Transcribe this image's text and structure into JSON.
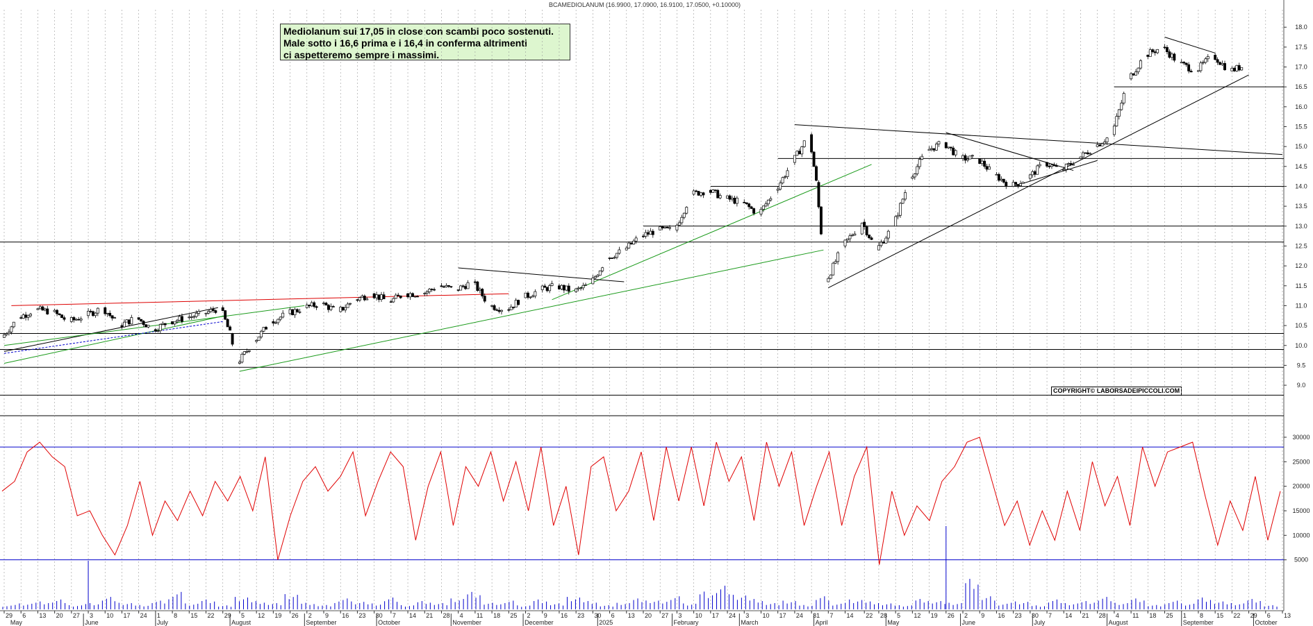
{
  "header": {
    "title": "BCAMEDIOLANUM (16.9900, 17.0900, 16.9100, 17.0500, +0.10000)"
  },
  "note": {
    "line1": "Mediolanum  sui 17,05 in close con scambi poco sostenuti.",
    "line2": "Male sotto i 16,6 prima e i 16,4 in conferma altrimenti",
    "line3": "ci aspetteremo sempre i massimi."
  },
  "copyright": "COPYRIGHT© LABORSADEIPICCOLI.COM",
  "colors": {
    "candle": "#000000",
    "oscillator": "#e00000",
    "volume": "#0000cc",
    "trend_green": "#1a9a1a",
    "trend_red": "#dd0000",
    "level_line": "#000000",
    "band": "#0000cc",
    "grid": "#9a9a9a",
    "note_bg": "#ddf6cf"
  },
  "chart_data": [
    {
      "type": "candlestick",
      "title": "BCAMEDIOLANUM",
      "ylim": [
        8.6,
        18.3
      ],
      "y_ticks": [
        "18.0",
        "17.5",
        "17.0",
        "16.5",
        "16.0",
        "15.5",
        "15.0",
        "14.5",
        "14.0",
        "13.5",
        "13.0",
        "12.5",
        "12.0",
        "11.5",
        "11.0",
        "10.5",
        "10.0",
        "9.5",
        "9.0"
      ],
      "x_months": [
        {
          "label": "May",
          "date": "2024-05-01"
        },
        {
          "label": "June",
          "date": "2024-06-01"
        },
        {
          "label": "July",
          "date": "2024-07-01"
        },
        {
          "label": "August",
          "date": "2024-08-01"
        },
        {
          "label": "September",
          "date": "2024-09-01"
        },
        {
          "label": "October",
          "date": "2024-10-01"
        },
        {
          "label": "November",
          "date": "2024-11-01"
        },
        {
          "label": "December",
          "date": "2024-12-01"
        },
        {
          "label": "2025",
          "date": "2025-01-01"
        },
        {
          "label": "February",
          "date": "2025-02-01"
        },
        {
          "label": "March",
          "date": "2025-03-01"
        },
        {
          "label": "April",
          "date": "2025-04-01"
        },
        {
          "label": "May",
          "date": "2025-05-01"
        },
        {
          "label": "June",
          "date": "2025-06-01"
        },
        {
          "label": "July",
          "date": "2025-07-01"
        },
        {
          "label": "August",
          "date": "2025-08-01"
        },
        {
          "label": "September",
          "date": "2025-09-01"
        },
        {
          "label": "October",
          "date": "2025-10-01"
        }
      ],
      "x_day_ticks": [
        {
          "label": "29",
          "date": "2024-04-29"
        },
        {
          "label": "6",
          "date": "2024-05-06"
        },
        {
          "label": "13",
          "date": "2024-05-13"
        },
        {
          "label": "20",
          "date": "2024-05-20"
        },
        {
          "label": "27",
          "date": "2024-05-27"
        },
        {
          "label": "3",
          "date": "2024-06-03"
        },
        {
          "label": "10",
          "date": "2024-06-10"
        },
        {
          "label": "17",
          "date": "2024-06-17"
        },
        {
          "label": "24",
          "date": "2024-06-24"
        },
        {
          "label": "1",
          "date": "2024-07-01"
        },
        {
          "label": "8",
          "date": "2024-07-08"
        },
        {
          "label": "15",
          "date": "2024-07-15"
        },
        {
          "label": "22",
          "date": "2024-07-22"
        },
        {
          "label": "29",
          "date": "2024-07-29"
        },
        {
          "label": "5",
          "date": "2024-08-05"
        },
        {
          "label": "12",
          "date": "2024-08-12"
        },
        {
          "label": "19",
          "date": "2024-08-19"
        },
        {
          "label": "26",
          "date": "2024-08-26"
        },
        {
          "label": "2",
          "date": "2024-09-02"
        },
        {
          "label": "9",
          "date": "2024-09-09"
        },
        {
          "label": "16",
          "date": "2024-09-16"
        },
        {
          "label": "23",
          "date": "2024-09-23"
        },
        {
          "label": "30",
          "date": "2024-09-30"
        },
        {
          "label": "7",
          "date": "2024-10-07"
        },
        {
          "label": "14",
          "date": "2024-10-14"
        },
        {
          "label": "21",
          "date": "2024-10-21"
        },
        {
          "label": "28",
          "date": "2024-10-28"
        },
        {
          "label": "4",
          "date": "2024-11-04"
        },
        {
          "label": "11",
          "date": "2024-11-11"
        },
        {
          "label": "18",
          "date": "2024-11-18"
        },
        {
          "label": "25",
          "date": "2024-11-25"
        },
        {
          "label": "2",
          "date": "2024-12-02"
        },
        {
          "label": "9",
          "date": "2024-12-09"
        },
        {
          "label": "16",
          "date": "2024-12-16"
        },
        {
          "label": "23",
          "date": "2024-12-23"
        },
        {
          "label": "30",
          "date": "2024-12-30"
        },
        {
          "label": "6",
          "date": "2025-01-06"
        },
        {
          "label": "13",
          "date": "2025-01-13"
        },
        {
          "label": "20",
          "date": "2025-01-20"
        },
        {
          "label": "27",
          "date": "2025-01-27"
        },
        {
          "label": "3",
          "date": "2025-02-03"
        },
        {
          "label": "10",
          "date": "2025-02-10"
        },
        {
          "label": "17",
          "date": "2025-02-17"
        },
        {
          "label": "24",
          "date": "2025-02-24"
        },
        {
          "label": "3",
          "date": "2025-03-03"
        },
        {
          "label": "10",
          "date": "2025-03-10"
        },
        {
          "label": "17",
          "date": "2025-03-17"
        },
        {
          "label": "24",
          "date": "2025-03-24"
        },
        {
          "label": "31",
          "date": "2025-03-31"
        },
        {
          "label": "7",
          "date": "2025-04-07"
        },
        {
          "label": "14",
          "date": "2025-04-14"
        },
        {
          "label": "22",
          "date": "2025-04-22"
        },
        {
          "label": "28",
          "date": "2025-04-28"
        },
        {
          "label": "5",
          "date": "2025-05-05"
        },
        {
          "label": "12",
          "date": "2025-05-12"
        },
        {
          "label": "19",
          "date": "2025-05-19"
        },
        {
          "label": "26",
          "date": "2025-05-26"
        },
        {
          "label": "2",
          "date": "2025-06-02"
        },
        {
          "label": "9",
          "date": "2025-06-09"
        },
        {
          "label": "16",
          "date": "2025-06-16"
        },
        {
          "label": "23",
          "date": "2025-06-23"
        },
        {
          "label": "30",
          "date": "2025-06-30"
        },
        {
          "label": "7",
          "date": "2025-07-07"
        },
        {
          "label": "14",
          "date": "2025-07-14"
        },
        {
          "label": "21",
          "date": "2025-07-21"
        },
        {
          "label": "28",
          "date": "2025-07-28"
        },
        {
          "label": "4",
          "date": "2025-08-04"
        },
        {
          "label": "11",
          "date": "2025-08-11"
        },
        {
          "label": "18",
          "date": "2025-08-18"
        },
        {
          "label": "25",
          "date": "2025-08-25"
        },
        {
          "label": "1",
          "date": "2025-09-01"
        },
        {
          "label": "8",
          "date": "2025-09-08"
        },
        {
          "label": "15",
          "date": "2025-09-15"
        },
        {
          "label": "22",
          "date": "2025-09-22"
        },
        {
          "label": "29",
          "date": "2025-09-29"
        },
        {
          "label": "6",
          "date": "2025-10-06"
        },
        {
          "label": "13",
          "date": "2025-10-13"
        }
      ],
      "close_series": [
        [
          "2024-04-29",
          10.2
        ],
        [
          "2024-05-06",
          10.7
        ],
        [
          "2024-05-13",
          10.9
        ],
        [
          "2024-05-20",
          10.85
        ],
        [
          "2024-05-27",
          10.6
        ],
        [
          "2024-06-03",
          10.75
        ],
        [
          "2024-06-10",
          10.95
        ],
        [
          "2024-06-17",
          10.5
        ],
        [
          "2024-06-24",
          10.7
        ],
        [
          "2024-07-01",
          10.4
        ],
        [
          "2024-07-08",
          10.6
        ],
        [
          "2024-07-15",
          10.7
        ],
        [
          "2024-07-22",
          10.8
        ],
        [
          "2024-07-29",
          10.95
        ],
        [
          "2024-08-02",
          10.3
        ],
        [
          "2024-08-05",
          9.55
        ],
        [
          "2024-08-12",
          10.1
        ],
        [
          "2024-08-19",
          10.6
        ],
        [
          "2024-08-26",
          10.8
        ],
        [
          "2024-09-02",
          10.95
        ],
        [
          "2024-09-09",
          11.05
        ],
        [
          "2024-09-16",
          10.85
        ],
        [
          "2024-09-23",
          11.15
        ],
        [
          "2024-09-30",
          11.3
        ],
        [
          "2024-10-07",
          11.1
        ],
        [
          "2024-10-14",
          11.3
        ],
        [
          "2024-10-21",
          11.3
        ],
        [
          "2024-10-28",
          11.5
        ],
        [
          "2024-11-04",
          11.4
        ],
        [
          "2024-11-11",
          11.6
        ],
        [
          "2024-11-18",
          11.0
        ],
        [
          "2024-11-25",
          10.9
        ],
        [
          "2024-12-02",
          11.2
        ],
        [
          "2024-12-09",
          11.4
        ],
        [
          "2024-12-16",
          11.5
        ],
        [
          "2024-12-23",
          11.35
        ],
        [
          "2024-12-30",
          11.55
        ],
        [
          "2025-01-06",
          12.2
        ],
        [
          "2025-01-13",
          12.4
        ],
        [
          "2025-01-20",
          12.75
        ],
        [
          "2025-01-27",
          12.9
        ],
        [
          "2025-02-03",
          12.9
        ],
        [
          "2025-02-10",
          13.8
        ],
        [
          "2025-02-17",
          13.9
        ],
        [
          "2025-02-24",
          13.7
        ],
        [
          "2025-03-03",
          13.6
        ],
        [
          "2025-03-10",
          13.3
        ],
        [
          "2025-03-17",
          13.9
        ],
        [
          "2025-03-24",
          14.6
        ],
        [
          "2025-03-31",
          15.3
        ],
        [
          "2025-04-03",
          14.1
        ],
        [
          "2025-04-07",
          11.6
        ],
        [
          "2025-04-14",
          12.5
        ],
        [
          "2025-04-22",
          13.1
        ],
        [
          "2025-04-28",
          12.4
        ],
        [
          "2025-05-05",
          13.0
        ],
        [
          "2025-05-12",
          14.2
        ],
        [
          "2025-05-19",
          14.9
        ],
        [
          "2025-05-26",
          15.1
        ],
        [
          "2025-06-02",
          14.7
        ],
        [
          "2025-06-09",
          14.7
        ],
        [
          "2025-06-16",
          14.3
        ],
        [
          "2025-06-23",
          14.0
        ],
        [
          "2025-06-30",
          14.2
        ],
        [
          "2025-07-07",
          14.6
        ],
        [
          "2025-07-14",
          14.4
        ],
        [
          "2025-07-21",
          14.7
        ],
        [
          "2025-07-28",
          15.0
        ],
        [
          "2025-08-04",
          15.3
        ],
        [
          "2025-08-11",
          16.7
        ],
        [
          "2025-08-18",
          17.3
        ],
        [
          "2025-08-25",
          17.5
        ],
        [
          "2025-09-01",
          17.1
        ],
        [
          "2025-09-08",
          16.9
        ],
        [
          "2025-09-15",
          17.3
        ],
        [
          "2025-09-22",
          16.9
        ],
        [
          "2025-09-29",
          17.05
        ]
      ],
      "horizontal_levels": [
        8.75,
        9.45,
        9.9,
        10.3,
        12.6,
        13.0,
        14.0,
        14.7,
        16.5
      ],
      "annotations": "trend lines (black, green, red)"
    },
    {
      "type": "line",
      "series": [
        {
          "values": [
            19000,
            21000,
            27000,
            29000,
            26000,
            24000,
            14000,
            15000,
            10000,
            6000,
            12000,
            21000,
            10000,
            17000,
            13000,
            19000,
            14000,
            21000,
            17000,
            22000,
            15000,
            26000,
            5000,
            14000,
            21000,
            24000,
            19000,
            22000,
            27000,
            14000,
            21000,
            27000,
            24000,
            9000,
            20000,
            27000,
            12000,
            24000,
            20000,
            27000,
            17000,
            25000,
            15000,
            28000,
            12000,
            20000,
            6000,
            24000,
            26000,
            15000,
            19000,
            27000,
            13000,
            28000,
            17000,
            28000,
            16000,
            29000,
            21000,
            26000,
            13000,
            29000,
            20000,
            27000,
            12000,
            20000,
            27000,
            12000,
            22000,
            28000,
            4000,
            19000,
            10000,
            16000,
            13000,
            21000,
            24000,
            29000,
            30000,
            21000,
            12000,
            17000,
            8000,
            15000,
            9000,
            19000,
            11000,
            25000,
            16000,
            22000,
            12000,
            28000,
            20000,
            27000,
            28000,
            29000,
            18000,
            8000,
            17000,
            11000,
            22000,
            9000,
            19000
          ]
        }
      ],
      "ylim": [
        0,
        30000
      ],
      "y_ticks": [
        "30000",
        "25000",
        "20000",
        "15000",
        "10000",
        "5000"
      ],
      "bands": [
        5000,
        28000
      ]
    },
    {
      "type": "bar",
      "series": [
        {
          "values": [
            2,
            3,
            4,
            5,
            2,
            3,
            6,
            3,
            2,
            4,
            8,
            3,
            5,
            2,
            6,
            4,
            3,
            7,
            3,
            2,
            5,
            4,
            3,
            6,
            2,
            4,
            3,
            5,
            8,
            3,
            4,
            2,
            5,
            3,
            6,
            4,
            2,
            3,
            5,
            4,
            6,
            3,
            9,
            12,
            7,
            5,
            3,
            4,
            2,
            6,
            3,
            5,
            4,
            3,
            2,
            5,
            4,
            3,
            14,
            6,
            3,
            4,
            2,
            5,
            3,
            4,
            6,
            3,
            5,
            2,
            4,
            3,
            6,
            4,
            3,
            5,
            2
          ]
        }
      ]
    }
  ]
}
